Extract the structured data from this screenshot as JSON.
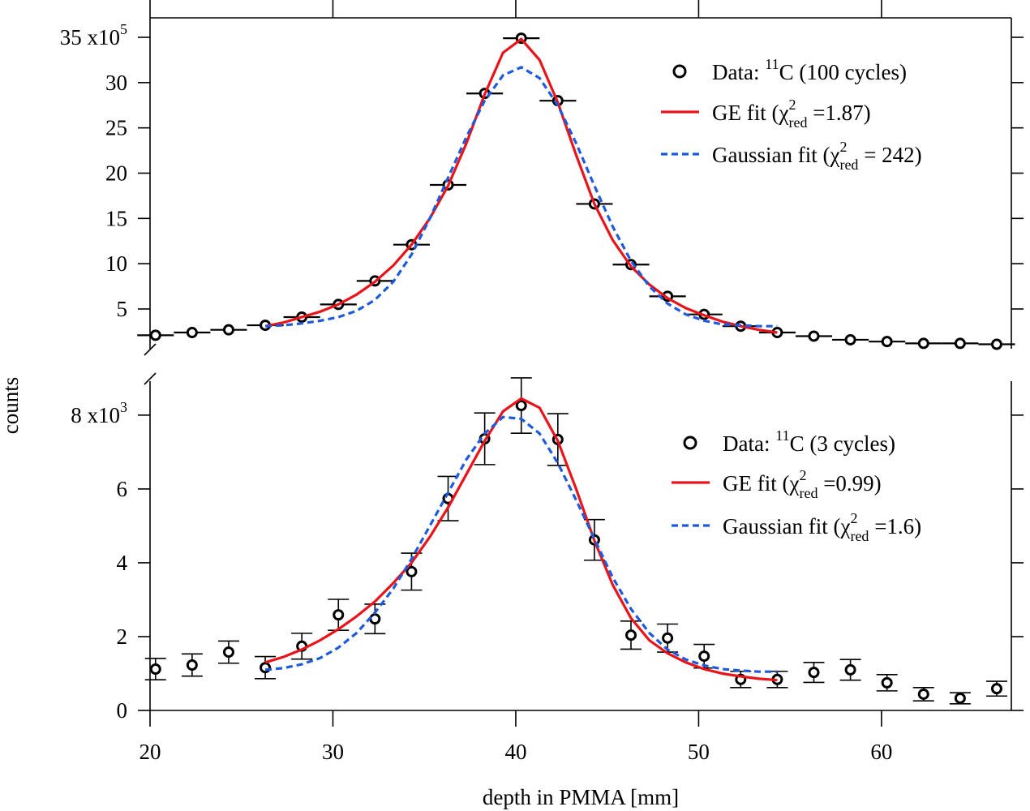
{
  "chart_data": [
    {
      "type": "scatter",
      "ylabel": "counts",
      "legend": "upper right",
      "xlim": [
        20,
        67.1
      ],
      "xticks": [
        20,
        30,
        40,
        50,
        60
      ],
      "ylim": [
        0.61,
        37.15
      ],
      "yticks": [
        {
          "value": 35,
          "label": "35 x10",
          "sup": "5"
        },
        30,
        25,
        20,
        15,
        10,
        5
      ],
      "series": [
        {
          "name": {
            "text": "Data: ",
            "sup": "11",
            "tail": "C  (100 cycles)"
          },
          "type": "scatter",
          "color": "#000000",
          "xerr": 1,
          "x": [
            20.3,
            22.3,
            24.3,
            26.3,
            28.3,
            30.3,
            32.3,
            34.3,
            36.3,
            38.3,
            40.3,
            42.3,
            44.3,
            46.3,
            48.3,
            50.3,
            52.3,
            54.3,
            56.3,
            58.3,
            60.3,
            62.3,
            64.3,
            66.3
          ],
          "values": [
            2.1,
            2.4,
            2.7,
            3.2,
            4.1,
            5.5,
            8.1,
            12.1,
            18.7,
            28.8,
            34.9,
            28.0,
            16.6,
            9.9,
            6.4,
            4.4,
            3.1,
            2.4,
            2.0,
            1.6,
            1.4,
            1.2,
            1.2,
            1.1
          ]
        },
        {
          "name": {
            "text": "GE fit (χ",
            "sup": "2",
            "sub": "red",
            "tail": " =1.87)"
          },
          "type": "line",
          "color": "#e8141a",
          "dash": false,
          "x": [
            26.3,
            27.3,
            28.3,
            29.3,
            30.3,
            31.3,
            32.3,
            33.3,
            34.3,
            35.3,
            36.3,
            37.3,
            38.3,
            39.3,
            40.3,
            41.3,
            42.3,
            43.3,
            44.3,
            45.3,
            46.3,
            47.3,
            48.3,
            49.3,
            50.3,
            51.3,
            52.3,
            53.3,
            54.3
          ],
          "values": [
            3.1,
            3.5,
            4.1,
            4.7,
            5.5,
            6.6,
            8.0,
            9.8,
            12.1,
            15.0,
            18.6,
            23.3,
            28.7,
            33.3,
            34.8,
            32.5,
            27.8,
            22.0,
            16.6,
            12.6,
            9.7,
            7.7,
            6.2,
            5.1,
            4.3,
            3.6,
            3.1,
            2.7,
            2.4
          ]
        },
        {
          "name": {
            "text": "Gaussian fit (χ",
            "sup": "2",
            "sub": "red",
            "tail": " = 242)"
          },
          "type": "line",
          "color": "#1e5adc",
          "dash": true,
          "x": [
            26.3,
            27.3,
            28.3,
            29.3,
            30.3,
            31.3,
            32.3,
            33.3,
            34.3,
            35.3,
            36.3,
            37.3,
            38.3,
            39.3,
            40.3,
            41.3,
            42.3,
            43.3,
            44.3,
            45.3,
            46.3,
            47.3,
            48.3,
            49.3,
            50.3,
            51.3,
            52.3,
            53.3,
            54.3
          ],
          "values": [
            3.1,
            3.2,
            3.4,
            3.7,
            4.1,
            4.8,
            6.0,
            8.0,
            11.0,
            15.0,
            19.5,
            24.0,
            28.0,
            30.8,
            31.7,
            30.5,
            27.5,
            23.3,
            18.6,
            14.1,
            10.3,
            7.5,
            5.6,
            4.4,
            3.7,
            3.3,
            3.2,
            3.1,
            3.1
          ]
        }
      ]
    },
    {
      "type": "scatter",
      "xlabel": "depth in PMMA [mm]",
      "legend": "upper right",
      "xlim": [
        20,
        67.1
      ],
      "xticks": [
        20,
        30,
        40,
        50,
        60
      ],
      "ylim": [
        0,
        8.92
      ],
      "yticks": [
        {
          "value": 8,
          "label": "8 x10",
          "sup": "3"
        },
        6,
        4,
        2,
        0
      ],
      "series": [
        {
          "name": {
            "text": "Data: ",
            "sup": "11",
            "tail": "C (3 cycles)"
          },
          "type": "scatter",
          "color": "#000000",
          "x": [
            20.3,
            22.3,
            24.3,
            26.3,
            28.3,
            30.3,
            32.3,
            34.3,
            36.3,
            38.3,
            40.3,
            42.3,
            44.3,
            46.3,
            48.3,
            50.3,
            52.3,
            54.3,
            56.3,
            58.3,
            60.3,
            62.3,
            64.3,
            66.3
          ],
          "values": [
            1.12,
            1.23,
            1.58,
            1.16,
            1.74,
            2.59,
            2.48,
            3.76,
            5.74,
            7.36,
            8.26,
            7.34,
            4.62,
            2.04,
            1.96,
            1.47,
            0.84,
            0.84,
            1.03,
            1.1,
            0.75,
            0.44,
            0.33,
            0.59
          ],
          "yerr": [
            0.29,
            0.3,
            0.3,
            0.3,
            0.35,
            0.42,
            0.4,
            0.5,
            0.6,
            0.7,
            0.75,
            0.7,
            0.55,
            0.38,
            0.38,
            0.32,
            0.22,
            0.22,
            0.27,
            0.28,
            0.22,
            0.18,
            0.15,
            0.2
          ]
        },
        {
          "name": {
            "text": "GE fit (χ",
            "sup": "2",
            "sub": "red",
            "tail": " =0.99)"
          },
          "type": "line",
          "color": "#e8141a",
          "dash": false,
          "x": [
            26.3,
            27.3,
            28.3,
            29.3,
            30.3,
            31.3,
            32.3,
            33.3,
            34.3,
            35.3,
            36.3,
            37.3,
            38.3,
            39.3,
            40.3,
            41.3,
            42.3,
            43.3,
            44.3,
            45.3,
            46.3,
            47.3,
            48.3,
            49.3,
            50.3,
            51.3,
            52.3,
            53.3,
            54.3
          ],
          "values": [
            1.3,
            1.45,
            1.65,
            1.9,
            2.2,
            2.55,
            2.95,
            3.45,
            4.0,
            4.7,
            5.5,
            6.4,
            7.3,
            8.1,
            8.45,
            8.2,
            7.3,
            6.0,
            4.6,
            3.4,
            2.5,
            1.9,
            1.55,
            1.3,
            1.12,
            1.0,
            0.92,
            0.86,
            0.82
          ]
        },
        {
          "name": {
            "text": "Gaussian fit (χ",
            "sup": "2",
            "sub": "red",
            "tail": " =1.6)"
          },
          "type": "line",
          "color": "#1e5adc",
          "dash": true,
          "x": [
            26.3,
            27.3,
            28.3,
            29.3,
            30.3,
            31.3,
            32.3,
            33.3,
            34.3,
            35.3,
            36.3,
            37.3,
            38.3,
            39.3,
            40.3,
            41.3,
            42.3,
            43.3,
            44.3,
            45.3,
            46.3,
            47.3,
            48.3,
            49.3,
            50.3,
            51.3,
            52.3,
            53.3,
            54.3
          ],
          "values": [
            1.1,
            1.15,
            1.25,
            1.42,
            1.7,
            2.1,
            2.65,
            3.3,
            4.1,
            5.0,
            5.9,
            6.8,
            7.5,
            7.95,
            7.9,
            7.5,
            6.7,
            5.7,
            4.65,
            3.6,
            2.75,
            2.1,
            1.65,
            1.38,
            1.22,
            1.12,
            1.08,
            1.05,
            1.05
          ]
        }
      ]
    }
  ]
}
